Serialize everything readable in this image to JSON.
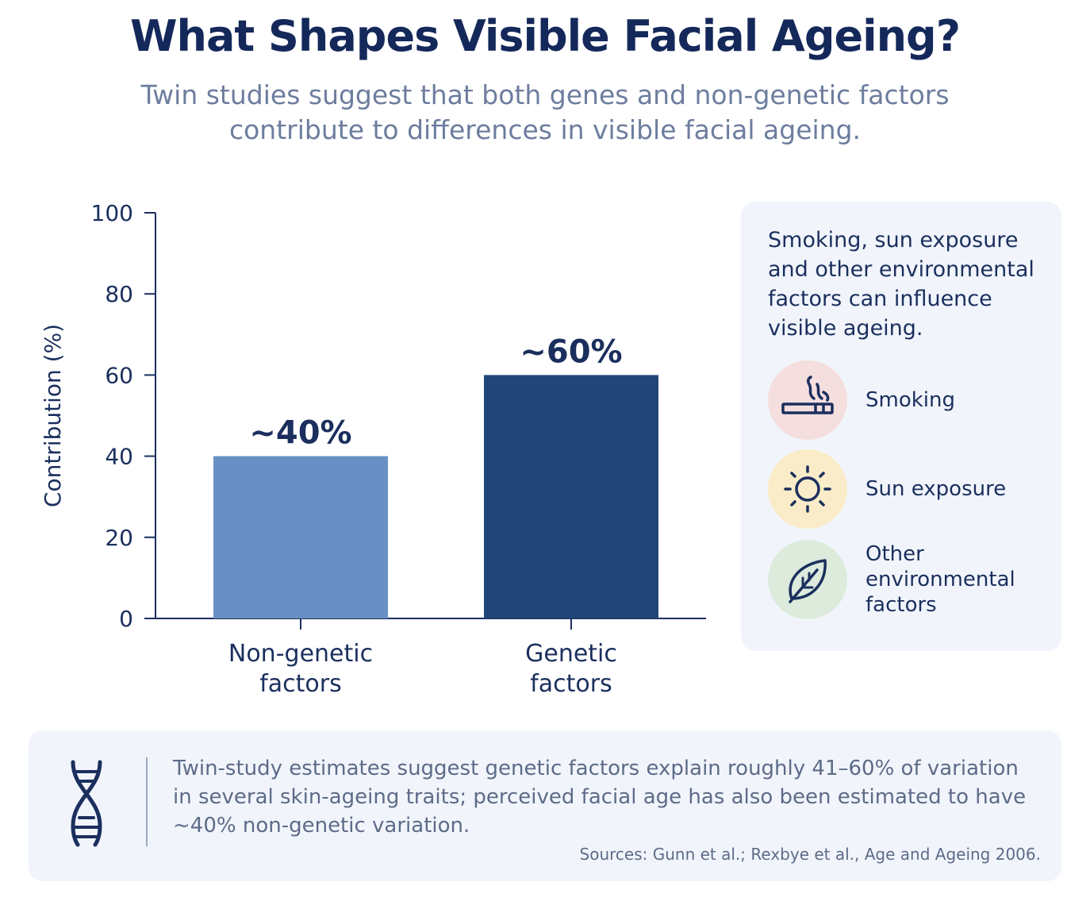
{
  "header": {
    "title": "What Shapes Visible Facial Ageing?",
    "subtitle": "Twin studies suggest that both genes and non-genetic factors contribute to differences in visible facial ageing."
  },
  "chart_data": {
    "type": "bar",
    "categories": [
      "Non-genetic factors",
      "Genetic factors"
    ],
    "category_lines": [
      [
        "Non-genetic",
        "factors"
      ],
      [
        "Genetic",
        "factors"
      ]
    ],
    "values": [
      40,
      60
    ],
    "data_labels": [
      "~40%",
      "~60%"
    ],
    "bar_colors": [
      "#6890c4",
      "#224577"
    ],
    "ylabel": "Contribution (%)",
    "xlabel": "",
    "ylim": [
      0,
      100
    ],
    "yticks": [
      0,
      20,
      40,
      60,
      80,
      100
    ],
    "grid": false
  },
  "side_panel": {
    "intro": "Smoking, sun exposure and other environmental factors can influence visible ageing.",
    "factors": [
      {
        "label": "Smoking",
        "icon": "cigarette-icon",
        "bg": "#f5dede"
      },
      {
        "label": "Sun exposure",
        "icon": "sun-icon",
        "bg": "#faecc8"
      },
      {
        "label": "Other environmental factors",
        "icon": "leaf-icon",
        "bg": "#dcebdc"
      }
    ]
  },
  "footer": {
    "icon": "dna-icon",
    "text": "Twin-study estimates suggest genetic factors explain roughly 41–60% of variation in several skin-ageing traits; perceived facial age has also been estimated to have ~40% non-genetic variation.",
    "sources": "Sources: Gunn et al.; Rexbye et al., Age and Ageing 2006."
  },
  "colors": {
    "title": "#14285a",
    "text": "#1b2f5e",
    "muted": "#6d7d9e",
    "panel_bg": "#f1f5fb"
  }
}
